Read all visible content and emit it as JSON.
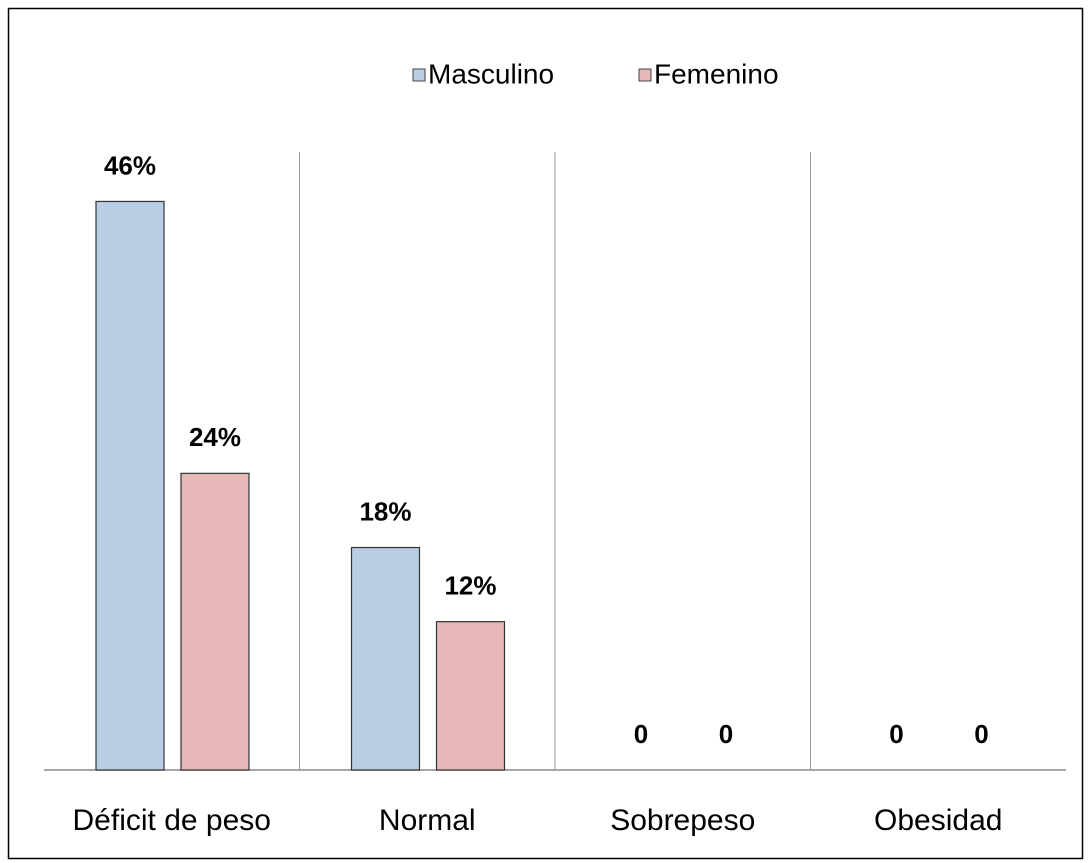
{
  "chart_data": {
    "type": "bar",
    "categories": [
      "Déficit de peso",
      "Normal",
      "Sobrepeso",
      "Obesidad"
    ],
    "series": [
      {
        "name": "Masculino",
        "color": "#b9cde5",
        "values": [
          46,
          18,
          0,
          0
        ],
        "value_labels": [
          "46%",
          "18%",
          "0",
          "0"
        ]
      },
      {
        "name": "Femenino",
        "color": "#e6b9b8",
        "values": [
          24,
          12,
          0,
          0
        ],
        "value_labels": [
          "24%",
          "12%",
          "0",
          "0"
        ]
      }
    ],
    "ylim": [
      0,
      50
    ],
    "legend": "top"
  }
}
